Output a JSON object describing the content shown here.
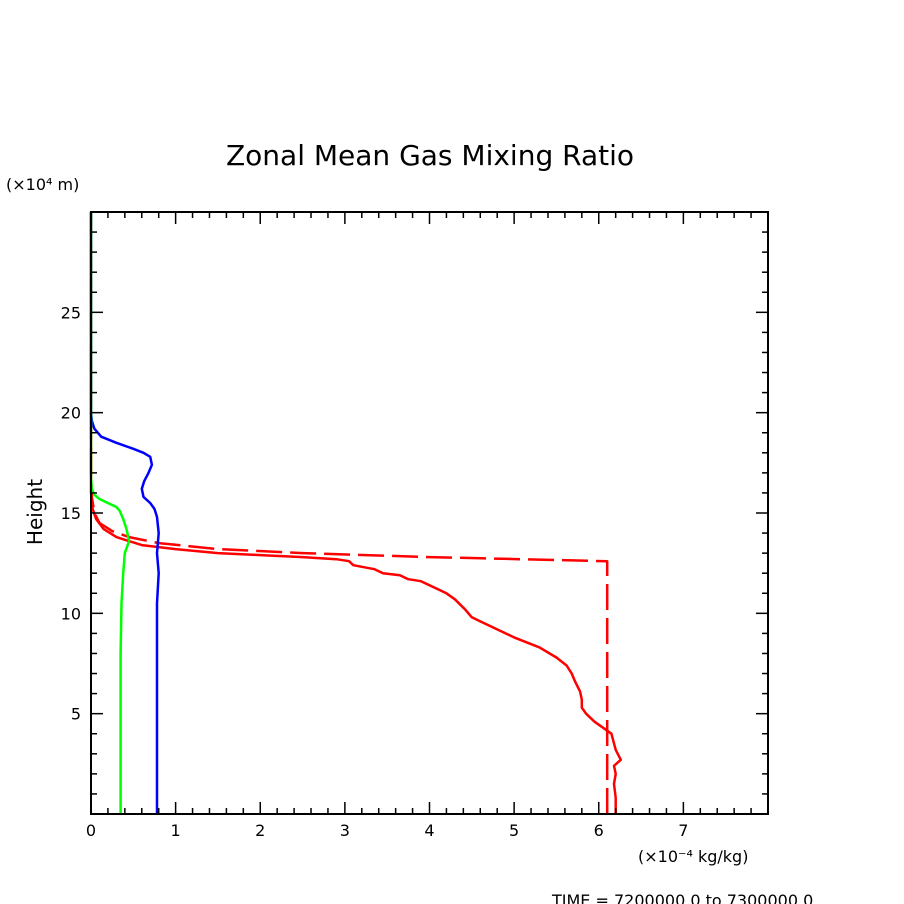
{
  "chart_data": {
    "type": "line",
    "title": "Zonal Mean Gas Mixing Ratio",
    "ylabel": "Height",
    "y_unit_label": "(×10⁴ m)",
    "x_unit_label": "(×10⁻⁴ kg/kg)",
    "footer": "TIME = 7200000.0 to 7300000.0",
    "xlim": [
      0,
      8
    ],
    "ylim": [
      0,
      30
    ],
    "x_ticks": [
      "0",
      "1",
      "2",
      "3",
      "4",
      "5",
      "6",
      "7"
    ],
    "y_ticks": [
      "5",
      "10",
      "15",
      "20",
      "25"
    ],
    "x_tick_values": [
      0,
      1,
      2,
      3,
      4,
      5,
      6,
      7
    ],
    "y_tick_values": [
      5,
      10,
      15,
      20,
      25
    ],
    "grid": false,
    "series": [
      {
        "color": "#ff0000",
        "dash": "solid",
        "points": [
          [
            6.2,
            0.0
          ],
          [
            6.2,
            0.8
          ],
          [
            6.18,
            1.5
          ],
          [
            6.2,
            2.0
          ],
          [
            6.18,
            2.4
          ],
          [
            6.26,
            2.7
          ],
          [
            6.2,
            3.2
          ],
          [
            6.15,
            4.0
          ],
          [
            6.05,
            4.3
          ],
          [
            5.95,
            4.6
          ],
          [
            5.85,
            5.0
          ],
          [
            5.8,
            5.3
          ],
          [
            5.8,
            5.7
          ],
          [
            5.78,
            6.1
          ],
          [
            5.72,
            6.6
          ],
          [
            5.68,
            7.0
          ],
          [
            5.62,
            7.4
          ],
          [
            5.5,
            7.8
          ],
          [
            5.3,
            8.3
          ],
          [
            5.0,
            8.8
          ],
          [
            4.8,
            9.2
          ],
          [
            4.6,
            9.6
          ],
          [
            4.5,
            9.8
          ],
          [
            4.42,
            10.2
          ],
          [
            4.3,
            10.7
          ],
          [
            4.2,
            11.0
          ],
          [
            4.05,
            11.3
          ],
          [
            3.9,
            11.6
          ],
          [
            3.75,
            11.7
          ],
          [
            3.65,
            11.9
          ],
          [
            3.45,
            12.0
          ],
          [
            3.35,
            12.2
          ],
          [
            3.1,
            12.4
          ],
          [
            3.05,
            12.6
          ],
          [
            2.9,
            12.7
          ],
          [
            2.5,
            12.8
          ],
          [
            2.0,
            12.9
          ],
          [
            1.5,
            13.0
          ],
          [
            1.0,
            13.2
          ],
          [
            0.6,
            13.4
          ],
          [
            0.3,
            13.8
          ],
          [
            0.15,
            14.2
          ],
          [
            0.06,
            14.7
          ],
          [
            0.02,
            15.2
          ],
          [
            0.0,
            16.0
          ],
          [
            0.0,
            30.0
          ]
        ]
      },
      {
        "color": "#ff0000",
        "dash": "dashed",
        "points": [
          [
            6.1,
            0.0
          ],
          [
            6.1,
            12.6
          ],
          [
            4.0,
            12.8
          ],
          [
            2.5,
            13.0
          ],
          [
            1.5,
            13.2
          ],
          [
            0.8,
            13.5
          ],
          [
            0.45,
            13.8
          ],
          [
            0.25,
            14.1
          ],
          [
            0.1,
            14.5
          ],
          [
            0.04,
            15.0
          ],
          [
            0.01,
            15.8
          ],
          [
            0.0,
            17.0
          ],
          [
            0.0,
            30.0
          ]
        ]
      },
      {
        "color": "#0000ff",
        "dash": "solid",
        "points": [
          [
            0.78,
            0.0
          ],
          [
            0.78,
            8.0
          ],
          [
            0.78,
            10.5
          ],
          [
            0.8,
            12.0
          ],
          [
            0.78,
            13.0
          ],
          [
            0.8,
            14.0
          ],
          [
            0.78,
            14.8
          ],
          [
            0.75,
            15.2
          ],
          [
            0.7,
            15.5
          ],
          [
            0.62,
            15.8
          ],
          [
            0.6,
            16.2
          ],
          [
            0.63,
            16.6
          ],
          [
            0.68,
            17.0
          ],
          [
            0.72,
            17.4
          ],
          [
            0.7,
            17.8
          ],
          [
            0.62,
            18.0
          ],
          [
            0.5,
            18.2
          ],
          [
            0.3,
            18.5
          ],
          [
            0.12,
            18.8
          ],
          [
            0.04,
            19.2
          ],
          [
            0.01,
            19.6
          ],
          [
            0.0,
            20.0
          ],
          [
            0.0,
            30.0
          ]
        ]
      },
      {
        "color": "#00ff00",
        "dash": "solid",
        "points": [
          [
            0.35,
            0.0
          ],
          [
            0.35,
            5.0
          ],
          [
            0.35,
            8.0
          ],
          [
            0.36,
            10.5
          ],
          [
            0.38,
            12.0
          ],
          [
            0.4,
            13.0
          ],
          [
            0.45,
            13.6
          ],
          [
            0.42,
            14.2
          ],
          [
            0.38,
            14.7
          ],
          [
            0.34,
            15.1
          ],
          [
            0.3,
            15.3
          ],
          [
            0.2,
            15.5
          ],
          [
            0.1,
            15.7
          ],
          [
            0.04,
            15.9
          ],
          [
            0.01,
            16.2
          ],
          [
            0.0,
            16.8
          ],
          [
            0.0,
            30.0
          ]
        ]
      }
    ]
  }
}
